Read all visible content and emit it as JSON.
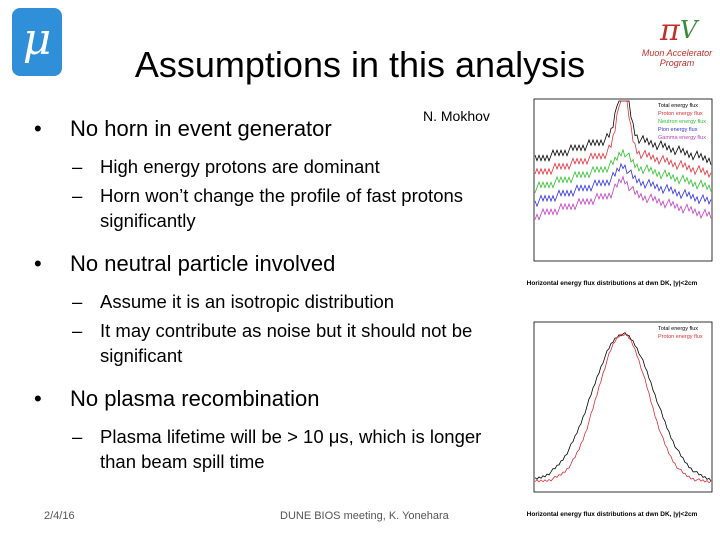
{
  "header": {
    "title": "Assumptions in this analysis",
    "logo_left": "μ",
    "logo_right": [
      "Muon Accelerator",
      "Program"
    ],
    "author_note": "N. Mokhov"
  },
  "bullets": [
    {
      "text": "No horn in event generator",
      "sub": [
        "High energy protons are dominant",
        "Horn won’t change the profile of fast protons significantly"
      ]
    },
    {
      "text": "No neutral particle involved",
      "sub": [
        "Assume it is an isotropic distribution",
        "It may contribute as noise but it should not be significant"
      ]
    },
    {
      "text": "No plasma recombination",
      "sub": [
        "Plasma lifetime will be > 10 μs, which is longer than beam spill time"
      ]
    }
  ],
  "figures": [
    {
      "legend": [
        "Total energy flux",
        "Proton energy flux",
        "Neutron energy flux",
        "Pion energy flux",
        "Gamma energy flux"
      ],
      "caption": "Horizontal energy flux distributions at dwn DK, |y|<2cm"
    },
    {
      "legend": [
        "Total energy flux",
        "Proton energy flux"
      ],
      "caption": "Horizontal energy flux distributions at dwn DK, |y|<2cm"
    }
  ],
  "footer": {
    "date": "2/4/16",
    "center": "DUNE BIOS meeting, K. Yonehara"
  }
}
